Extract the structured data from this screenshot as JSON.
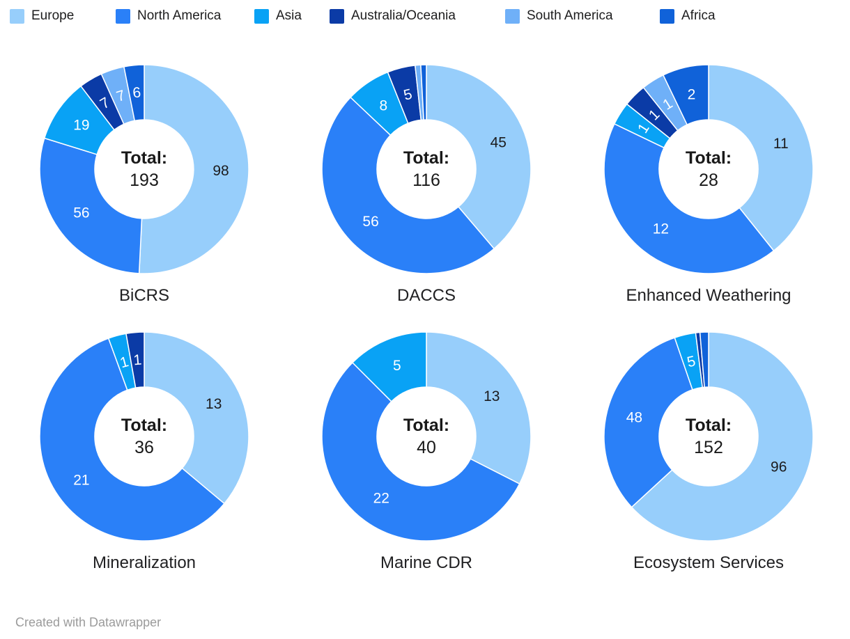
{
  "legend": {
    "note": "legend labels/colors bound from chart_data.regions"
  },
  "chart_data": {
    "type": "pie",
    "subtype": "donut",
    "layout": {
      "start_angle": "12-oclock",
      "direction": "clockwise",
      "donut_hole_ratio": 0.47,
      "legend_position": "top",
      "grid": "2 rows x 3 columns"
    },
    "regions": [
      {
        "name": "Europe",
        "color": "#97cefb",
        "label_color": "#1c1c1e"
      },
      {
        "name": "North America",
        "color": "#2a80f8",
        "label_color": "#ffffff"
      },
      {
        "name": "Asia",
        "color": "#09a2f5",
        "label_color": "#ffffff"
      },
      {
        "name": "Australia/Oceania",
        "color": "#0b3ba6",
        "label_color": "#ffffff"
      },
      {
        "name": "South America",
        "color": "#6fb0f8",
        "label_color": "#ffffff"
      },
      {
        "name": "Africa",
        "color": "#1062d9",
        "label_color": "#ffffff"
      }
    ],
    "charts": [
      {
        "title": "BiCRS",
        "total_label": "Total:",
        "total": 193,
        "slices": [
          {
            "region": "Europe",
            "value": 98
          },
          {
            "region": "North America",
            "value": 56
          },
          {
            "region": "Asia",
            "value": 19
          },
          {
            "region": "Australia/Oceania",
            "value": 7
          },
          {
            "region": "South America",
            "value": 7
          },
          {
            "region": "Africa",
            "value": 6
          }
        ]
      },
      {
        "title": "DACCS",
        "total_label": "Total:",
        "total": 116,
        "slices": [
          {
            "region": "Europe",
            "value": 45
          },
          {
            "region": "North America",
            "value": 56
          },
          {
            "region": "Asia",
            "value": 8
          },
          {
            "region": "Australia/Oceania",
            "value": 5
          },
          {
            "region": "South America",
            "value": 1
          },
          {
            "region": "Africa",
            "value": 1
          }
        ]
      },
      {
        "title": "Enhanced Weathering",
        "total_label": "Total:",
        "total": 28,
        "slices": [
          {
            "region": "Europe",
            "value": 11
          },
          {
            "region": "North America",
            "value": 12
          },
          {
            "region": "Asia",
            "value": 1
          },
          {
            "region": "Australia/Oceania",
            "value": 1
          },
          {
            "region": "South America",
            "value": 1
          },
          {
            "region": "Africa",
            "value": 2
          }
        ]
      },
      {
        "title": "Mineralization",
        "total_label": "Total:",
        "total": 36,
        "slices": [
          {
            "region": "Europe",
            "value": 13
          },
          {
            "region": "North America",
            "value": 21
          },
          {
            "region": "Asia",
            "value": 1
          },
          {
            "region": "Australia/Oceania",
            "value": 1
          }
        ]
      },
      {
        "title": "Marine CDR",
        "total_label": "Total:",
        "total": 40,
        "slices": [
          {
            "region": "Europe",
            "value": 13
          },
          {
            "region": "North America",
            "value": 22
          },
          {
            "region": "Asia",
            "value": 5
          }
        ]
      },
      {
        "title": "Ecosystem Services",
        "total_label": "Total:",
        "total": 152,
        "slices": [
          {
            "region": "Europe",
            "value": 96
          },
          {
            "region": "North America",
            "value": 48
          },
          {
            "region": "Asia",
            "value": 5
          },
          {
            "region": "Australia/Oceania",
            "value": 1
          },
          {
            "region": "Africa",
            "value": 2
          }
        ]
      }
    ]
  },
  "footer": {
    "credit": "Created with Datawrapper"
  }
}
